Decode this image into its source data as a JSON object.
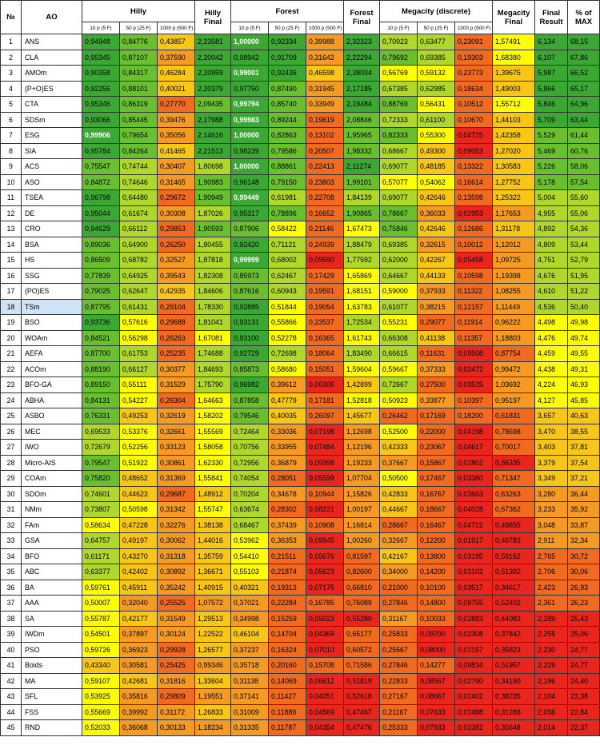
{
  "header": {
    "num": "№",
    "ao": "AO",
    "hilly": "Hilly",
    "hilly_final": "Hilly Final",
    "forest": "Forest",
    "forest_final": "Forest Final",
    "megacity": "Megacity (discrete)",
    "megacity_final": "Megacity Final",
    "final_result": "Final Result",
    "pct_max": "% of MAX",
    "sub": [
      "10 p (5 F)",
      "50 p (25 F)",
      "1000 p (500 F)"
    ]
  },
  "colors": {
    "dark_green": "#3aa832",
    "green": "#6abf2e",
    "lime": "#b0d82a",
    "yellow": "#ffff00",
    "gold": "#f7c617",
    "orange": "#f59a22",
    "dark_orange": "#f06a1f",
    "red": "#e8261e",
    "highlight_text": "#ffffff",
    "selected_row": "#cfe3f6"
  },
  "selected_row": 18,
  "rows": [
    {
      "n": "1",
      "ao": "ANS",
      "v": [
        "0,94948",
        "0,84776",
        "0,43857",
        "2,23581",
        "1,00000",
        "0,92334",
        "0,39988",
        "2,32323",
        "0,70923",
        "0,63477",
        "0,23091",
        "1,57491",
        "6,134",
        "68,15"
      ],
      "hl": [
        4
      ]
    },
    {
      "n": "2",
      "ao": "CLA",
      "v": [
        "0,95345",
        "0,87107",
        "0,37590",
        "2,20042",
        "0,98942",
        "0,91709",
        "0,31642",
        "2,22294",
        "0,79692",
        "0,69385",
        "0,19303",
        "1,68380",
        "6,107",
        "67,86"
      ],
      "hl": []
    },
    {
      "n": "3",
      "ao": "AMOm",
      "v": [
        "0,90358",
        "0,84317",
        "0,46284",
        "2,20959",
        "0,99001",
        "0,92436",
        "0,46598",
        "2,38034",
        "0,56769",
        "0,59132",
        "0,23773",
        "1,39675",
        "5,987",
        "66,52"
      ],
      "hl": [
        4
      ]
    },
    {
      "n": "4",
      "ao": "(P+O)ES",
      "v": [
        "0,92256",
        "0,88101",
        "0,40021",
        "2,20379",
        "0,97750",
        "0,87490",
        "0,31945",
        "2,17185",
        "0,67385",
        "0,62985",
        "0,18634",
        "1,49003",
        "5,866",
        "65,17"
      ],
      "hl": []
    },
    {
      "n": "5",
      "ao": "CTA",
      "v": [
        "0,95346",
        "0,86319",
        "0,27770",
        "2,09435",
        "0,99794",
        "0,85740",
        "0,33949",
        "2,19484",
        "0,88769",
        "0,56431",
        "0,10512",
        "1,55712",
        "5,846",
        "64,96"
      ],
      "hl": [
        4
      ]
    },
    {
      "n": "6",
      "ao": "SDSm",
      "v": [
        "0,93066",
        "0,85445",
        "0,39476",
        "2,17988",
        "0,99983",
        "0,89244",
        "0,19619",
        "2,08846",
        "0,72333",
        "0,61100",
        "0,10670",
        "1,44103",
        "5,709",
        "63,44"
      ],
      "hl": [
        4
      ]
    },
    {
      "n": "7",
      "ao": "ESG",
      "v": [
        "0,99906",
        "0,79654",
        "0,35056",
        "2,14616",
        "1,00000",
        "0,82863",
        "0,13102",
        "1,95965",
        "0,82333",
        "0,55300",
        "0,04725",
        "1,42358",
        "5,529",
        "61,44"
      ],
      "hl": [
        0,
        4
      ]
    },
    {
      "n": "8",
      "ao": "SIA",
      "v": [
        "0,95784",
        "0,84264",
        "0,41465",
        "2,21513",
        "0,98239",
        "0,79586",
        "0,20507",
        "1,98332",
        "0,68667",
        "0,49300",
        "0,09053",
        "1,27020",
        "5,469",
        "60,76"
      ],
      "hl": []
    },
    {
      "n": "9",
      "ao": "ACS",
      "v": [
        "0,75547",
        "0,74744",
        "0,30407",
        "1,80698",
        "1,00000",
        "0,88861",
        "0,22413",
        "2,11274",
        "0,69077",
        "0,48185",
        "0,13322",
        "1,30583",
        "5,226",
        "58,06"
      ],
      "hl": [
        4
      ]
    },
    {
      "n": "10",
      "ao": "ASO",
      "v": [
        "0,84872",
        "0,74646",
        "0,31465",
        "1,90983",
        "0,96148",
        "0,79150",
        "0,23803",
        "1,99101",
        "0,57077",
        "0,54062",
        "0,16614",
        "1,27752",
        "5,178",
        "57,54"
      ],
      "hl": []
    },
    {
      "n": "11",
      "ao": "TSEA",
      "v": [
        "0,96798",
        "0,64480",
        "0,29672",
        "1,90949",
        "0,99449",
        "0,61981",
        "0,22708",
        "1,84139",
        "0,69077",
        "0,42646",
        "0,13598",
        "1,25322",
        "5,004",
        "55,60"
      ],
      "hl": [
        4
      ]
    },
    {
      "n": "12",
      "ao": "DE",
      "v": [
        "0,95044",
        "0,61674",
        "0,30308",
        "1,87026",
        "0,95317",
        "0,78896",
        "0,16652",
        "1,90865",
        "0,78667",
        "0,36033",
        "0,02953",
        "1,17653",
        "4,955",
        "55,06"
      ],
      "hl": []
    },
    {
      "n": "13",
      "ao": "CRO",
      "v": [
        "0,94629",
        "0,66112",
        "0,29853",
        "1,90593",
        "0,87906",
        "0,58422",
        "0,21146",
        "1,67473",
        "0,75846",
        "0,42646",
        "0,12686",
        "1,31178",
        "4,892",
        "54,36"
      ],
      "hl": []
    },
    {
      "n": "14",
      "ao": "BSA",
      "v": [
        "0,89036",
        "0,64900",
        "0,26250",
        "1,80455",
        "0,92420",
        "0,71121",
        "0,24939",
        "1,88479",
        "0,69385",
        "0,32615",
        "0,10012",
        "1,12012",
        "4,809",
        "53,44"
      ],
      "hl": []
    },
    {
      "n": "15",
      "ao": "HS",
      "v": [
        "0,86509",
        "0,68782",
        "0,32527",
        "1,87818",
        "0,99999",
        "0,68002",
        "0,09590",
        "1,77592",
        "0,62000",
        "0,42267",
        "0,05458",
        "1,09725",
        "4,751",
        "52,79"
      ],
      "hl": [
        4
      ]
    },
    {
      "n": "16",
      "ao": "SSG",
      "v": [
        "0,77839",
        "0,64925",
        "0,39543",
        "1,82308",
        "0,85973",
        "0,62467",
        "0,17429",
        "1,65869",
        "0,64667",
        "0,44133",
        "0,10598",
        "1,19398",
        "4,676",
        "51,95"
      ],
      "hl": []
    },
    {
      "n": "17",
      "ao": "(PO)ES",
      "v": [
        "0,79025",
        "0,62647",
        "0,42935",
        "1,84606",
        "0,87616",
        "0,60943",
        "0,19591",
        "1,68151",
        "0,59000",
        "0,37933",
        "0,11322",
        "1,08255",
        "4,610",
        "51,22"
      ],
      "hl": []
    },
    {
      "n": "18",
      "ao": "TSm",
      "v": [
        "0,87795",
        "0,61431",
        "0,29104",
        "1,78330",
        "0,92885",
        "0,51844",
        "0,19054",
        "1,63783",
        "0,61077",
        "0,38215",
        "0,12157",
        "1,11449",
        "4,536",
        "50,40"
      ],
      "hl": []
    },
    {
      "n": "19",
      "ao": "BSO",
      "v": [
        "0,93736",
        "0,57616",
        "0,29688",
        "1,81041",
        "0,93131",
        "0,55866",
        "0,23537",
        "1,72534",
        "0,55231",
        "0,29077",
        "0,11914",
        "0,96222",
        "4,498",
        "49,98"
      ],
      "hl": []
    },
    {
      "n": "20",
      "ao": "WOAm",
      "v": [
        "0,84521",
        "0,56298",
        "0,26263",
        "1,67081",
        "0,93100",
        "0,52278",
        "0,16365",
        "1,61743",
        "0,66308",
        "0,41138",
        "0,11357",
        "1,18803",
        "4,476",
        "49,74"
      ],
      "hl": []
    },
    {
      "n": "21",
      "ao": "AEFA",
      "v": [
        "0,87700",
        "0,61753",
        "0,25235",
        "1,74688",
        "0,92729",
        "0,72698",
        "0,18064",
        "1,83490",
        "0,66615",
        "0,11631",
        "0,09508",
        "0,87754",
        "4,459",
        "49,55"
      ],
      "hl": []
    },
    {
      "n": "22",
      "ao": "ACOm",
      "v": [
        "0,88190",
        "0,66127",
        "0,30377",
        "1,84693",
        "0,85873",
        "0,58680",
        "0,15051",
        "1,59604",
        "0,59667",
        "0,37333",
        "0,02472",
        "0,99472",
        "4,438",
        "49,31"
      ],
      "hl": []
    },
    {
      "n": "23",
      "ao": "BFO-GA",
      "v": [
        "0,89150",
        "0,55111",
        "0,31529",
        "1,75790",
        "0,96982",
        "0,39612",
        "0,06305",
        "1,42899",
        "0,72667",
        "0,27500",
        "0,03525",
        "1,03692",
        "4,224",
        "46,93"
      ],
      "hl": []
    },
    {
      "n": "24",
      "ao": "ABHA",
      "v": [
        "0,84131",
        "0,54227",
        "0,26304",
        "1,64663",
        "0,87858",
        "0,47779",
        "0,17181",
        "1,52818",
        "0,50923",
        "0,33877",
        "0,10397",
        "0,95197",
        "4,127",
        "45,85"
      ],
      "hl": []
    },
    {
      "n": "25",
      "ao": "ASBO",
      "v": [
        "0,76331",
        "0,49253",
        "0,32619",
        "1,58202",
        "0,79546",
        "0,40035",
        "0,26097",
        "1,45677",
        "0,26462",
        "0,17169",
        "0,18200",
        "0,61831",
        "3,657",
        "40,63"
      ],
      "hl": []
    },
    {
      "n": "26",
      "ao": "MEC",
      "v": [
        "0,69533",
        "0,53376",
        "0,32661",
        "1,55569",
        "0,72464",
        "0,33036",
        "0,07198",
        "1,12698",
        "0,52500",
        "0,22000",
        "0,04198",
        "0,78698",
        "3,470",
        "38,55"
      ],
      "hl": []
    },
    {
      "n": "27",
      "ao": "IWO",
      "v": [
        "0,72679",
        "0,52256",
        "0,33123",
        "1,58058",
        "0,70756",
        "0,33955",
        "0,07484",
        "1,12196",
        "0,42333",
        "0,23067",
        "0,04617",
        "0,70017",
        "3,403",
        "37,81"
      ],
      "hl": []
    },
    {
      "n": "28",
      "ao": "Micro-AIS",
      "v": [
        "0,79547",
        "0,51922",
        "0,30861",
        "1,62330",
        "0,72956",
        "0,36879",
        "0,09398",
        "1,19233",
        "0,37667",
        "0,15867",
        "0,02802",
        "0,56335",
        "3,379",
        "37,54"
      ],
      "hl": []
    },
    {
      "n": "29",
      "ao": "COAm",
      "v": [
        "0,75820",
        "0,48652",
        "0,31369",
        "1,55841",
        "0,74054",
        "0,28051",
        "0,05599",
        "1,07704",
        "0,50500",
        "0,17467",
        "0,03380",
        "0,71347",
        "3,349",
        "37,21"
      ],
      "hl": []
    },
    {
      "n": "30",
      "ao": "SDOm",
      "v": [
        "0,74601",
        "0,44623",
        "0,29687",
        "1,48912",
        "0,70204",
        "0,34678",
        "0,10944",
        "1,15826",
        "0,42833",
        "0,16767",
        "0,03663",
        "0,63263",
        "3,280",
        "36,44"
      ],
      "hl": []
    },
    {
      "n": "31",
      "ao": "NMm",
      "v": [
        "0,73807",
        "0,50598",
        "0,31342",
        "1,55747",
        "0,63674",
        "0,28302",
        "0,08221",
        "1,00197",
        "0,44667",
        "0,18667",
        "0,04028",
        "0,67362",
        "3,233",
        "35,92"
      ],
      "hl": []
    },
    {
      "n": "32",
      "ao": "FAm",
      "v": [
        "0,58634",
        "0,47228",
        "0,32276",
        "1,38138",
        "0,68467",
        "0,37439",
        "0,10908",
        "1,16814",
        "0,28667",
        "0,16467",
        "0,04722",
        "0,49855",
        "3,048",
        "33,87"
      ],
      "hl": []
    },
    {
      "n": "33",
      "ao": "GSA",
      "v": [
        "0,64757",
        "0,49197",
        "0,30062",
        "1,44016",
        "0,53962",
        "0,36353",
        "0,09945",
        "1,00260",
        "0,32667",
        "0,12200",
        "0,01917",
        "0,46783",
        "2,911",
        "32,34"
      ],
      "hl": []
    },
    {
      "n": "34",
      "ao": "BFO",
      "v": [
        "0,61171",
        "0,43270",
        "0,31318",
        "1,35759",
        "0,54410",
        "0,21511",
        "0,05676",
        "0,81597",
        "0,42167",
        "0,13800",
        "0,03195",
        "0,59162",
        "2,765",
        "30,72"
      ],
      "hl": []
    },
    {
      "n": "35",
      "ao": "ABC",
      "v": [
        "0,63377",
        "0,42402",
        "0,30892",
        "1,36671",
        "0,55103",
        "0,21874",
        "0,05623",
        "0,82600",
        "0,34000",
        "0,14200",
        "0,03102",
        "0,51302",
        "2,706",
        "30,06"
      ],
      "hl": []
    },
    {
      "n": "36",
      "ao": "BA",
      "v": [
        "0,59761",
        "0,45911",
        "0,35242",
        "1,40915",
        "0,40321",
        "0,19313",
        "0,07175",
        "0,66810",
        "0,21000",
        "0,10100",
        "0,03517",
        "0,34617",
        "2,423",
        "26,93"
      ],
      "hl": []
    },
    {
      "n": "37",
      "ao": "AAA",
      "v": [
        "0,50007",
        "0,32040",
        "0,25525",
        "1,07572",
        "0,37021",
        "0,22284",
        "0,16785",
        "0,76089",
        "0,27846",
        "0,14800",
        "0,09755",
        "0,52402",
        "2,361",
        "26,23"
      ],
      "hl": []
    },
    {
      "n": "38",
      "ao": "SA",
      "v": [
        "0,55787",
        "0,42177",
        "0,31549",
        "1,29513",
        "0,34998",
        "0,15259",
        "0,05023",
        "0,55280",
        "0,31167",
        "0,10033",
        "0,02883",
        "0,44083",
        "2,289",
        "25,43"
      ],
      "hl": []
    },
    {
      "n": "39",
      "ao": "IWDm",
      "v": [
        "0,54501",
        "0,37897",
        "0,30124",
        "1,22522",
        "0,46104",
        "0,14704",
        "0,04369",
        "0,65177",
        "0,25833",
        "0,09700",
        "0,02308",
        "0,37842",
        "2,255",
        "25,06"
      ],
      "hl": []
    },
    {
      "n": "40",
      "ao": "PSO",
      "v": [
        "0,59726",
        "0,36923",
        "0,29928",
        "1,26577",
        "0,37237",
        "0,16324",
        "0,07010",
        "0,60572",
        "0,25667",
        "0,08000",
        "0,02157",
        "0,35823",
        "2,230",
        "24,77"
      ],
      "hl": []
    },
    {
      "n": "41",
      "ao": "Boids",
      "v": [
        "0,43340",
        "0,30581",
        "0,25425",
        "0,99346",
        "0,35718",
        "0,20160",
        "0,15708",
        "0,71586",
        "0,27846",
        "0,14277",
        "0,09834",
        "0,51957",
        "2,229",
        "24,77"
      ],
      "hl": []
    },
    {
      "n": "42",
      "ao": "MA",
      "v": [
        "0,59107",
        "0,42681",
        "0,31816",
        "1,33604",
        "0,31138",
        "0,14069",
        "0,06612",
        "0,51819",
        "0,22833",
        "0,08567",
        "0,02790",
        "0,34190",
        "2,196",
        "24,40"
      ],
      "hl": []
    },
    {
      "n": "43",
      "ao": "SFL",
      "v": [
        "0,53925",
        "0,35816",
        "0,29809",
        "1,19551",
        "0,37141",
        "0,11427",
        "0,04051",
        "0,52618",
        "0,27167",
        "0,08667",
        "0,02402",
        "0,38235",
        "2,104",
        "23,38"
      ],
      "hl": []
    },
    {
      "n": "44",
      "ao": "FSS",
      "v": [
        "0,55669",
        "0,39992",
        "0,31172",
        "1,26833",
        "0,31009",
        "0,11889",
        "0,04569",
        "0,47467",
        "0,21167",
        "0,07633",
        "0,02488",
        "0,31288",
        "2,056",
        "22,84"
      ],
      "hl": []
    },
    {
      "n": "45",
      "ao": "RND",
      "v": [
        "0,52033",
        "0,36068",
        "0,30133",
        "1,18234",
        "0,31335",
        "0,11787",
        "0,04354",
        "0,47476",
        "0,25333",
        "0,07933",
        "0,02382",
        "0,35648",
        "2,014",
        "22,37"
      ],
      "hl": []
    }
  ]
}
